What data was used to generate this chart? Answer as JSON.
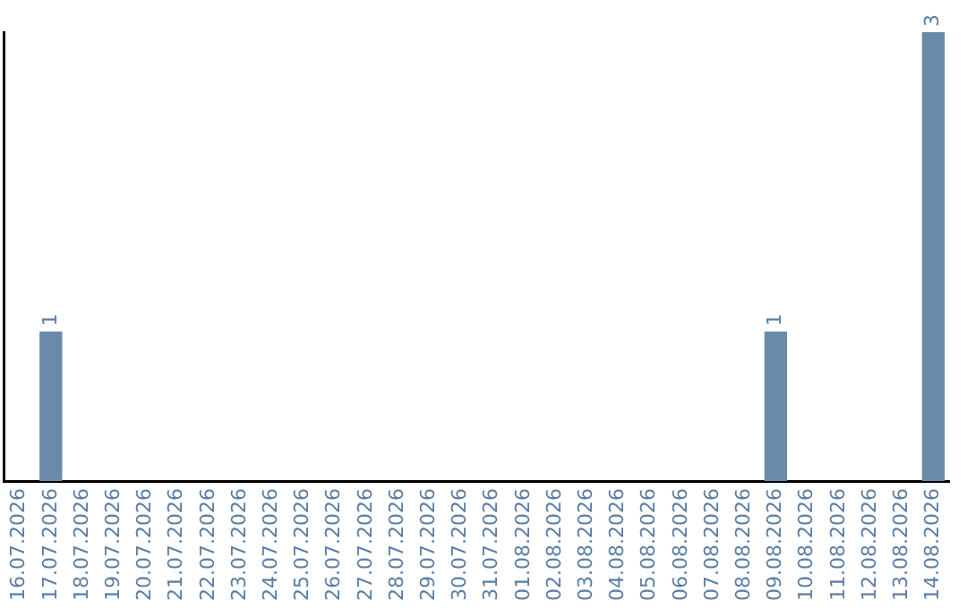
{
  "chart_data": {
    "type": "bar",
    "categories": [
      "16.07.2026",
      "17.07.2026",
      "18.07.2026",
      "19.07.2026",
      "20.07.2026",
      "21.07.2026",
      "22.07.2026",
      "23.07.2026",
      "24.07.2026",
      "25.07.2026",
      "26.07.2026",
      "27.07.2026",
      "28.07.2026",
      "29.07.2026",
      "30.07.2026",
      "31.07.2026",
      "01.08.2026",
      "02.08.2026",
      "03.08.2026",
      "04.08.2026",
      "05.08.2026",
      "06.08.2026",
      "07.08.2026",
      "08.08.2026",
      "09.08.2026",
      "10.08.2026",
      "11.08.2026",
      "12.08.2026",
      "13.08.2026",
      "14.08.2026"
    ],
    "values": [
      0,
      1,
      0,
      0,
      0,
      0,
      0,
      0,
      0,
      0,
      0,
      0,
      0,
      0,
      0,
      0,
      0,
      0,
      0,
      0,
      0,
      0,
      0,
      0,
      1,
      0,
      0,
      0,
      0,
      3
    ],
    "value_labels": [
      null,
      "1",
      null,
      null,
      null,
      null,
      null,
      null,
      null,
      null,
      null,
      null,
      null,
      null,
      null,
      null,
      null,
      null,
      null,
      null,
      null,
      null,
      null,
      null,
      "1",
      null,
      null,
      null,
      null,
      "3"
    ],
    "color": "#6a8aaa",
    "tick_labels": "x",
    "grid": false,
    "legend": false
  }
}
